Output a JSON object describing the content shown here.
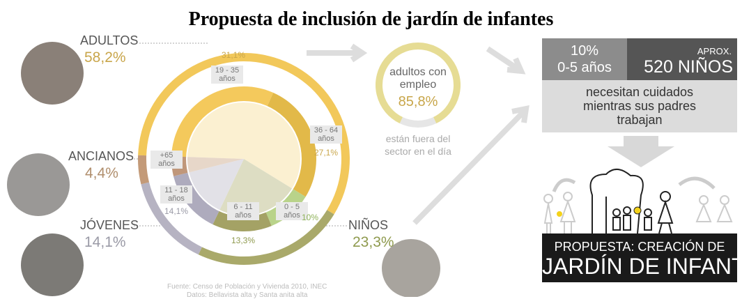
{
  "title": "Propuesta de inclusión de jardín de infantes",
  "outer_ring": {
    "segments": [
      {
        "name": "ADULTOS",
        "value": 58.2,
        "value_label": "58,2%",
        "color": "#f2c85a"
      },
      {
        "name": "NIÑOS",
        "value": 23.3,
        "value_label": "23,3%",
        "color": "#a9a96a"
      },
      {
        "name": "JÓVENES",
        "value": 14.1,
        "value_label": "14,1%",
        "color": "#b6b3c2"
      },
      {
        "name": "ANCIANOS",
        "value": 4.4,
        "value_label": "4,4%",
        "color": "#c39a78"
      }
    ]
  },
  "inner_ring": {
    "segments": [
      {
        "label": "19 - 35 años",
        "value": 31.1,
        "value_label": "31,1%",
        "color": "#f4c95c"
      },
      {
        "label": "36 - 64 años",
        "value": 27.1,
        "value_label": "27,1%",
        "color": "#e2b949"
      },
      {
        "label": "0 - 5 años",
        "value": 10,
        "value_label": "10%",
        "color": "#b9d38a"
      },
      {
        "label": "6 - 11 años",
        "value": 13.3,
        "value_label": "13,3%",
        "color": "#a4a265"
      },
      {
        "label": "11 - 18 años",
        "value": 14.1,
        "value_label": "14,1%",
        "color": "#aeabbd"
      },
      {
        "label": "+65 años",
        "value": 4.4,
        "color": "#c0977a"
      }
    ]
  },
  "employment": {
    "label": "adultos con empleo",
    "value": 85.8,
    "value_label": "85,8%",
    "note": "están fuera del sector en el día"
  },
  "panel": {
    "share": "10%",
    "age": "0-5 años",
    "approx": "APROX.",
    "count": "520 NIÑOS",
    "need": "necesitan cuidados mientras sus padres trabajan",
    "proposal": "PROPUESTA: CREACIÓN DE",
    "name": "JARDÍN DE INFANTES"
  },
  "source": "Fuente: Censo de Población y Vivienda 2010, INEC",
  "source_detail": "Datos: Bellavista alta y Santa anita alta"
}
